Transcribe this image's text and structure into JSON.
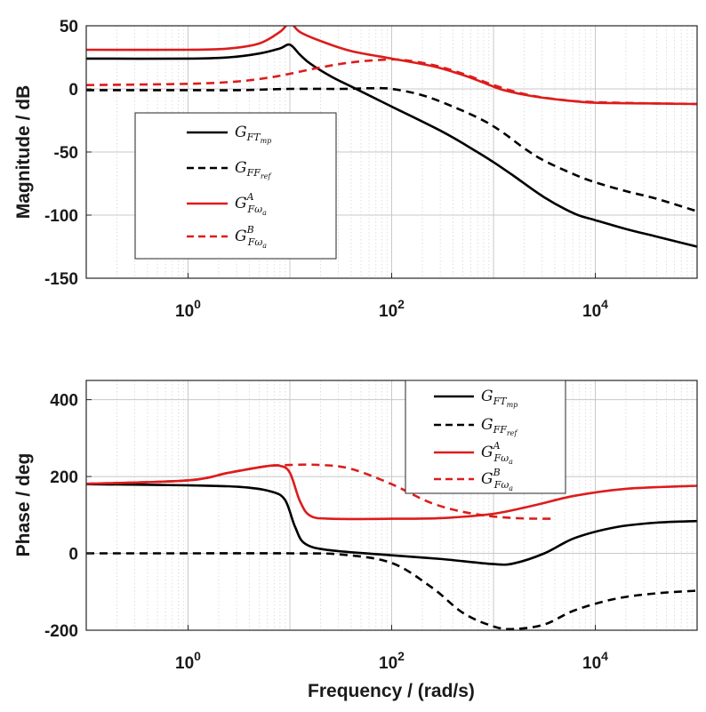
{
  "figure": {
    "xlabel": "Frequency / (rad/s)"
  },
  "colors": {
    "black": "#000000",
    "red": "#dd1c1c"
  },
  "chart_data": [
    {
      "type": "line",
      "name": "magnitude",
      "ylabel": "Magnitude / dB",
      "xscale": "log",
      "xlim_exp": [
        -1,
        5
      ],
      "ylim": [
        -150,
        50
      ],
      "xticks": [
        {
          "exp": 0,
          "base": "10",
          "sup": "0"
        },
        {
          "exp": 2,
          "base": "10",
          "sup": "2"
        },
        {
          "exp": 4,
          "base": "10",
          "sup": "4"
        }
      ],
      "yticks": [
        50,
        0,
        -50,
        -100,
        -150
      ],
      "legend_position": "center-left",
      "legend": [
        {
          "series": "G_FT_mp",
          "main": "G",
          "sub": "FT",
          "subsub": "mp",
          "sup": ""
        },
        {
          "series": "G_FF_ref",
          "main": "G",
          "sub": "FF",
          "subsub": "ref",
          "sup": ""
        },
        {
          "series": "G_Fwa_A",
          "main": "G",
          "sub": "Fω",
          "subsub": "a",
          "sup": "A"
        },
        {
          "series": "G_Fwa_B",
          "main": "G",
          "sub": "Fω",
          "subsub": "a",
          "sup": "B"
        }
      ],
      "series": [
        {
          "name": "G_FT_mp",
          "color": "black",
          "dash": false,
          "points": [
            [
              -1,
              24
            ],
            [
              0,
              24
            ],
            [
              0.4,
              25
            ],
            [
              0.7,
              28
            ],
            [
              0.9,
              32
            ],
            [
              1.0,
              35
            ],
            [
              1.1,
              27
            ],
            [
              1.2,
              20
            ],
            [
              1.4,
              10
            ],
            [
              1.6,
              2
            ],
            [
              2.0,
              -14
            ],
            [
              2.5,
              -34
            ],
            [
              2.8,
              -48
            ],
            [
              3.0,
              -58
            ],
            [
              3.2,
              -69
            ],
            [
              3.5,
              -86
            ],
            [
              3.8,
              -99
            ],
            [
              4.0,
              -104
            ],
            [
              4.3,
              -111
            ],
            [
              4.6,
              -117
            ],
            [
              5.0,
              -125
            ]
          ]
        },
        {
          "series_note": "",
          "name": "G_FF_ref",
          "color": "black",
          "dash": true,
          "points": [
            [
              -1,
              -1
            ],
            [
              0,
              -1
            ],
            [
              0.5,
              -1
            ],
            [
              1.0,
              0
            ],
            [
              1.5,
              0
            ],
            [
              1.8,
              0.5
            ],
            [
              2.0,
              0
            ],
            [
              2.3,
              -5
            ],
            [
              2.6,
              -14
            ],
            [
              2.9,
              -25
            ],
            [
              3.1,
              -35
            ],
            [
              3.3,
              -47
            ],
            [
              3.5,
              -57
            ],
            [
              3.8,
              -68
            ],
            [
              4.0,
              -74
            ],
            [
              4.3,
              -81
            ],
            [
              4.6,
              -87
            ],
            [
              5.0,
              -97
            ]
          ]
        },
        {
          "name": "G_Fwa_A",
          "color": "red",
          "dash": false,
          "points": [
            [
              -1,
              31
            ],
            [
              0,
              31
            ],
            [
              0.4,
              32
            ],
            [
              0.7,
              36
            ],
            [
              0.9,
              45
            ],
            [
              1.0,
              52
            ],
            [
              1.1,
              45
            ],
            [
              1.3,
              38
            ],
            [
              1.6,
              30
            ],
            [
              2.0,
              24
            ],
            [
              2.4,
              18
            ],
            [
              2.7,
              11
            ],
            [
              2.9,
              5
            ],
            [
              3.1,
              -1
            ],
            [
              3.4,
              -6
            ],
            [
              3.7,
              -9
            ],
            [
              4.0,
              -11
            ],
            [
              4.5,
              -11.5
            ],
            [
              5.0,
              -12
            ]
          ]
        },
        {
          "name": "G_Fwa_B",
          "color": "red",
          "dash": true,
          "points": [
            [
              -1,
              3
            ],
            [
              0,
              4
            ],
            [
              0.5,
              6
            ],
            [
              0.8,
              9
            ],
            [
              1.0,
              12
            ],
            [
              1.3,
              17
            ],
            [
              1.6,
              21
            ],
            [
              1.9,
              23
            ],
            [
              2.1,
              23
            ],
            [
              2.4,
              19
            ],
            [
              2.7,
              12
            ],
            [
              3.0,
              3
            ],
            [
              3.3,
              -4
            ],
            [
              3.6,
              -8
            ],
            [
              4.0,
              -10.5
            ],
            [
              5.0,
              -12
            ]
          ]
        }
      ]
    },
    {
      "type": "line",
      "name": "phase",
      "ylabel": "Phase / deg",
      "xscale": "log",
      "xlim_exp": [
        -1,
        5
      ],
      "ylim": [
        -200,
        450
      ],
      "xticks": [
        {
          "exp": 0,
          "base": "10",
          "sup": "0"
        },
        {
          "exp": 2,
          "base": "10",
          "sup": "2"
        },
        {
          "exp": 4,
          "base": "10",
          "sup": "4"
        }
      ],
      "yticks": [
        400,
        200,
        0,
        -200
      ],
      "legend_position": "top-right",
      "legend": [
        {
          "series": "G_FT_mp",
          "main": "G",
          "sub": "FT",
          "subsub": "mp",
          "sup": ""
        },
        {
          "series": "G_FF_ref",
          "main": "G",
          "sub": "FF",
          "subsub": "ref",
          "sup": ""
        },
        {
          "series": "G_Fwa_A",
          "main": "G",
          "sub": "Fω",
          "subsub": "a",
          "sup": "A"
        },
        {
          "series": "G_Fwa_B",
          "main": "G",
          "sub": "Fω",
          "subsub": "a",
          "sup": "B"
        }
      ],
      "series": [
        {
          "name": "G_FT_mp",
          "color": "black",
          "dash": false,
          "points": [
            [
              -1,
              180
            ],
            [
              0,
              177
            ],
            [
              0.5,
              173
            ],
            [
              0.8,
              162
            ],
            [
              0.95,
              140
            ],
            [
              1.05,
              70
            ],
            [
              1.15,
              25
            ],
            [
              1.4,
              8
            ],
            [
              2.0,
              -5
            ],
            [
              2.5,
              -15
            ],
            [
              3.0,
              -28
            ],
            [
              3.2,
              -26
            ],
            [
              3.5,
              0
            ],
            [
              3.8,
              40
            ],
            [
              4.2,
              68
            ],
            [
              4.6,
              80
            ],
            [
              5.0,
              84
            ]
          ]
        },
        {
          "name": "G_FF_ref",
          "color": "black",
          "dash": true,
          "points": [
            [
              -1,
              0
            ],
            [
              0,
              0
            ],
            [
              1.0,
              0
            ],
            [
              1.5,
              -3
            ],
            [
              2.0,
              -25
            ],
            [
              2.4,
              -90
            ],
            [
              2.7,
              -155
            ],
            [
              3.0,
              -190
            ],
            [
              3.2,
              -197
            ],
            [
              3.5,
              -185
            ],
            [
              3.8,
              -148
            ],
            [
              4.2,
              -118
            ],
            [
              4.6,
              -104
            ],
            [
              5.0,
              -97
            ]
          ]
        },
        {
          "name": "G_Fwa_A",
          "color": "red",
          "dash": false,
          "points": [
            [
              -1,
              181
            ],
            [
              0,
              190
            ],
            [
              0.4,
              210
            ],
            [
              0.75,
              226
            ],
            [
              0.9,
              228
            ],
            [
              1.0,
              210
            ],
            [
              1.1,
              135
            ],
            [
              1.2,
              98
            ],
            [
              1.4,
              90
            ],
            [
              2.0,
              90
            ],
            [
              2.5,
              92
            ],
            [
              3.0,
              103
            ],
            [
              3.4,
              125
            ],
            [
              3.8,
              150
            ],
            [
              4.3,
              168
            ],
            [
              5.0,
              176
            ]
          ]
        },
        {
          "name": "G_Fwa_B",
          "color": "red",
          "dash": true,
          "points": [
            [
              -1,
              181
            ],
            [
              0,
              190
            ],
            [
              0.4,
              210
            ],
            [
              0.75,
              226
            ],
            [
              1.0,
              230
            ],
            [
              1.3,
              230
            ],
            [
              1.6,
              220
            ],
            [
              2.0,
              180
            ],
            [
              2.4,
              130
            ],
            [
              2.8,
              103
            ],
            [
              3.2,
              92
            ],
            [
              3.6,
              90
            ]
          ]
        }
      ]
    }
  ]
}
